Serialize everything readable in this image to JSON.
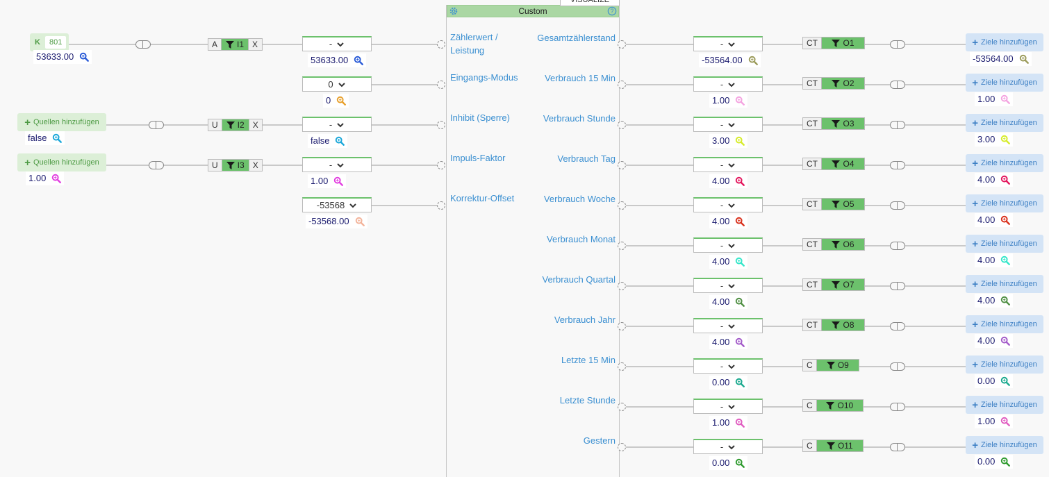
{
  "block": {
    "title": "Custom",
    "visualize_label": "VISUALIZE",
    "settings_icon": "gear-icon",
    "help_icon": "help-icon"
  },
  "inputs": [
    {
      "label_l1": "Zählerwert /",
      "label_l2": "Leistung",
      "dropdown": "-",
      "value": "53633.00",
      "mag_color": "#2a5bd7"
    },
    {
      "label_l1": "Eingangs-Modus",
      "dropdown": "0",
      "value": "0",
      "mag_color": "#e8a02c"
    },
    {
      "label_l1": "Inhibit (Sperre)",
      "dropdown": "-",
      "value": "false",
      "mag_color": "#1aa7d9"
    },
    {
      "label_l1": "Impuls-Faktor",
      "dropdown": "-",
      "value": "1.00",
      "mag_color": "#e23ee0"
    },
    {
      "label_l1": "Korrektur-Offset",
      "dropdown": "-53568",
      "value": "-53568.00",
      "mag_color": "#f3b39a"
    }
  ],
  "sources": [
    {
      "type": "k-badge",
      "k": "K",
      "number": "801",
      "value": "53633.00",
      "mag_color": "#2a5bd7",
      "filter": {
        "left": "A",
        "name": "I1",
        "right": "X"
      }
    },
    {
      "type": "add",
      "label": "Quellen hinzufügen",
      "value": "false",
      "mag_color": "#1aa7d9",
      "filter": {
        "left": "U",
        "name": "I2",
        "right": "X"
      }
    },
    {
      "type": "add",
      "label": "Quellen hinzufügen",
      "value": "1.00",
      "mag_color": "#e23ee0",
      "filter": {
        "left": "U",
        "name": "I3",
        "right": "X"
      }
    }
  ],
  "outputs": [
    {
      "label": "Gesamtzählerstand",
      "dropdown": "-",
      "value": "-53564.00",
      "mag_color": "#9b9b5a",
      "filter_left": "CT",
      "filter_name": "O1",
      "target_label": "Ziele hinzufügen",
      "target_value": "-53564.00"
    },
    {
      "label": "Verbrauch 15 Min",
      "dropdown": "-",
      "value": "1.00",
      "mag_color": "#f4a3e0",
      "filter_left": "CT",
      "filter_name": "O2",
      "target_label": "Ziele hinzufügen",
      "target_value": "1.00"
    },
    {
      "label": "Verbrauch Stunde",
      "dropdown": "-",
      "value": "3.00",
      "mag_color": "#d6ec2a",
      "filter_left": "CT",
      "filter_name": "O3",
      "target_label": "Ziele hinzufügen",
      "target_value": "3.00"
    },
    {
      "label": "Verbrauch Tag",
      "dropdown": "-",
      "value": "4.00",
      "mag_color": "#e3155c",
      "filter_left": "CT",
      "filter_name": "O4",
      "target_label": "Ziele hinzufügen",
      "target_value": "4.00"
    },
    {
      "label": "Verbrauch Woche",
      "dropdown": "-",
      "value": "4.00",
      "mag_color": "#d9301c",
      "filter_left": "CT",
      "filter_name": "O5",
      "target_label": "Ziele hinzufügen",
      "target_value": "4.00"
    },
    {
      "label": "Verbrauch Monat",
      "dropdown": "-",
      "value": "4.00",
      "mag_color": "#34e6c9",
      "filter_left": "CT",
      "filter_name": "O6",
      "target_label": "Ziele hinzufügen",
      "target_value": "4.00"
    },
    {
      "label": "Verbrauch Quartal",
      "dropdown": "-",
      "value": "4.00",
      "mag_color": "#4f8f43",
      "filter_left": "CT",
      "filter_name": "O7",
      "target_label": "Ziele hinzufügen",
      "target_value": "4.00"
    },
    {
      "label": "Verbrauch Jahr",
      "dropdown": "-",
      "value": "4.00",
      "mag_color": "#a35bc9",
      "filter_left": "CT",
      "filter_name": "O8",
      "target_label": "Ziele hinzufügen",
      "target_value": "4.00"
    },
    {
      "label": "Letzte 15 Min",
      "dropdown": "-",
      "value": "0.00",
      "mag_color": "#1aa98e",
      "filter_left": "C",
      "filter_name": "O9",
      "target_label": "Ziele hinzufügen",
      "target_value": "0.00"
    },
    {
      "label": "Letzte Stunde",
      "dropdown": "-",
      "value": "1.00",
      "mag_color": "#e05cc0",
      "filter_left": "C",
      "filter_name": "O10",
      "target_label": "Ziele hinzufügen",
      "target_value": "1.00"
    },
    {
      "label": "Gestern",
      "dropdown": "-",
      "value": "0.00",
      "mag_color": "#2e9a2e",
      "filter_left": "C",
      "filter_name": "O11",
      "target_label": "Ziele hinzufügen",
      "target_value": "0.00"
    }
  ]
}
